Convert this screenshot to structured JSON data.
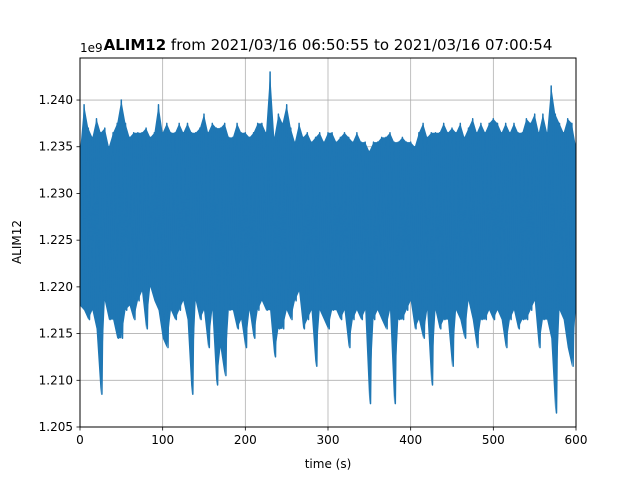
{
  "chart_data": {
    "type": "line",
    "title_bold": "ALIM12",
    "title_rest": " from 2021/03/16 06:50:55 to 2021/03/16 07:00:54",
    "xlabel": "time (s)",
    "ylabel": "ALIM12",
    "y_offset_label": "1e9",
    "xlim": [
      0,
      600
    ],
    "ylim": [
      1.205,
      1.2445
    ],
    "x_ticks": [
      0,
      100,
      200,
      300,
      400,
      500,
      600
    ],
    "x_tick_labels": [
      "0",
      "100",
      "200",
      "300",
      "400",
      "500",
      "600"
    ],
    "y_ticks": [
      1.205,
      1.21,
      1.215,
      1.22,
      1.225,
      1.23,
      1.235,
      1.24
    ],
    "y_tick_labels": [
      "1.205",
      "1.210",
      "1.215",
      "1.220",
      "1.225",
      "1.230",
      "1.235",
      "1.240"
    ],
    "grid": true,
    "series_color": "#1f77b4",
    "series": [
      {
        "x": [
          0,
          5,
          10,
          15,
          20,
          25,
          30,
          35,
          40,
          45,
          50,
          55,
          60,
          65,
          70,
          75,
          80,
          85,
          90,
          95,
          100,
          105,
          110,
          115,
          120,
          125,
          130,
          135,
          140,
          145,
          150,
          155,
          160,
          165,
          170,
          175,
          180,
          185,
          190,
          195,
          200,
          205,
          210,
          215,
          220,
          225,
          230,
          235,
          240,
          245,
          250,
          255,
          260,
          265,
          270,
          275,
          280,
          285,
          290,
          295,
          300,
          305,
          310,
          315,
          320,
          325,
          330,
          335,
          340,
          345,
          350,
          355,
          360,
          365,
          370,
          375,
          380,
          385,
          390,
          395,
          400,
          405,
          410,
          415,
          420,
          425,
          430,
          435,
          440,
          445,
          450,
          455,
          460,
          465,
          470,
          475,
          480,
          485,
          490,
          495,
          500,
          505,
          510,
          515,
          520,
          525,
          530,
          535,
          540,
          545,
          550,
          555,
          560,
          565,
          570,
          575,
          580,
          585,
          590,
          595,
          600
        ],
        "y_high": [
          1.2345,
          1.2395,
          1.237,
          1.236,
          1.238,
          1.2365,
          1.237,
          1.235,
          1.2365,
          1.2375,
          1.24,
          1.2375,
          1.236,
          1.2365,
          1.2365,
          1.2365,
          1.237,
          1.236,
          1.2365,
          1.2395,
          1.2365,
          1.2375,
          1.2365,
          1.2365,
          1.2375,
          1.2365,
          1.2375,
          1.2365,
          1.2365,
          1.237,
          1.2385,
          1.2365,
          1.2375,
          1.237,
          1.237,
          1.2375,
          1.236,
          1.236,
          1.2375,
          1.2365,
          1.2365,
          1.236,
          1.2365,
          1.2375,
          1.2375,
          1.2365,
          1.243,
          1.236,
          1.2385,
          1.2375,
          1.2395,
          1.237,
          1.2355,
          1.2375,
          1.236,
          1.2365,
          1.2355,
          1.236,
          1.2365,
          1.2355,
          1.2365,
          1.2365,
          1.2355,
          1.236,
          1.2365,
          1.236,
          1.2355,
          1.2365,
          1.2355,
          1.2355,
          1.2345,
          1.2355,
          1.2355,
          1.236,
          1.236,
          1.2365,
          1.2355,
          1.2355,
          1.236,
          1.2355,
          1.2355,
          1.235,
          1.2365,
          1.2375,
          1.236,
          1.2365,
          1.2365,
          1.2365,
          1.2375,
          1.2365,
          1.237,
          1.2365,
          1.2375,
          1.236,
          1.237,
          1.238,
          1.2365,
          1.2375,
          1.2365,
          1.2375,
          1.238,
          1.2375,
          1.2365,
          1.2375,
          1.2365,
          1.2375,
          1.2365,
          1.2365,
          1.238,
          1.2375,
          1.2385,
          1.2365,
          1.2385,
          1.2365,
          1.2415,
          1.2385,
          1.2375,
          1.2365,
          1.238,
          1.2375,
          1.235
        ],
        "y_low": [
          1.218,
          1.2175,
          1.2165,
          1.2175,
          1.2155,
          1.2085,
          1.2185,
          1.2165,
          1.2165,
          1.2145,
          1.2145,
          1.2175,
          1.218,
          1.2165,
          1.2185,
          1.2195,
          1.2155,
          1.22,
          1.2185,
          1.2175,
          1.2145,
          1.2135,
          1.2175,
          1.2165,
          1.2175,
          1.2185,
          1.2165,
          1.2085,
          1.2185,
          1.2165,
          1.2175,
          1.2135,
          1.2175,
          1.2095,
          1.2135,
          1.2105,
          1.2175,
          1.2175,
          1.2155,
          1.2165,
          1.2135,
          1.2175,
          1.2145,
          1.2175,
          1.2185,
          1.2175,
          1.2175,
          1.2125,
          1.2155,
          1.2155,
          1.2175,
          1.2165,
          1.2185,
          1.2195,
          1.2155,
          1.2165,
          1.2175,
          1.2115,
          1.2175,
          1.2165,
          1.2155,
          1.2175,
          1.2175,
          1.2165,
          1.2175,
          1.2135,
          1.2165,
          1.2175,
          1.2165,
          1.2175,
          1.2075,
          1.2165,
          1.2175,
          1.2165,
          1.2155,
          1.2175,
          1.2075,
          1.2165,
          1.2165,
          1.2175,
          1.2185,
          1.2155,
          1.2165,
          1.2145,
          1.2175,
          1.2095,
          1.2175,
          1.2155,
          1.2165,
          1.2165,
          1.2115,
          1.2175,
          1.2165,
          1.2145,
          1.2185,
          1.2165,
          1.2135,
          1.2165,
          1.2165,
          1.2175,
          1.2165,
          1.2175,
          1.2165,
          1.2135,
          1.2165,
          1.2175,
          1.2155,
          1.2165,
          1.2165,
          1.2175,
          1.2185,
          1.2135,
          1.2165,
          1.2165,
          1.2145,
          1.2065,
          1.2175,
          1.2165,
          1.2135,
          1.2115,
          1.218
        ]
      }
    ]
  }
}
